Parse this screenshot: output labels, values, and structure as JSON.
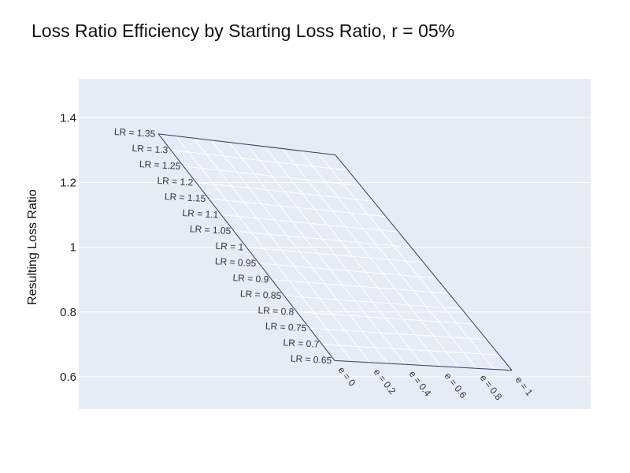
{
  "chart_data": {
    "type": "carpet",
    "title": "Loss Ratio Efficiency by Starting Loss Ratio, r = 05%",
    "ylabel": "Resulting Loss Ratio",
    "ylim": [
      0.5,
      1.52
    ],
    "yticks": [
      0.6,
      0.8,
      1,
      1.2,
      1.4
    ],
    "ytick_labels": [
      "0.6",
      "0.8",
      "1",
      "1.2",
      "1.4"
    ],
    "a_axis": {
      "name": "e",
      "values": [
        0,
        0.1,
        0.2,
        0.3,
        0.4,
        0.5,
        0.6,
        0.7,
        0.8,
        0.9,
        1
      ],
      "labels": [
        "e = 0",
        "e = 0.2",
        "e = 0.4",
        "e = 0.6",
        "e = 0.8",
        "e = 1"
      ],
      "label_values": [
        0,
        0.2,
        0.4,
        0.6,
        0.8,
        1
      ]
    },
    "b_axis": {
      "name": "LR",
      "values": [
        0.65,
        0.7,
        0.75,
        0.8,
        0.85,
        0.9,
        0.95,
        1,
        1.05,
        1.1,
        1.15,
        1.2,
        1.25,
        1.3,
        1.35
      ],
      "labels": [
        "LR = 0.65",
        "LR = 0.7",
        "LR = 0.75",
        "LR = 0.8",
        "LR = 0.85",
        "LR = 0.9",
        "LR = 0.95",
        "LR = 1",
        "LR = 1.05",
        "LR = 1.1",
        "LR = 1.15",
        "LR = 1.2",
        "LR = 1.25",
        "LR = 1.3",
        "LR = 1.35"
      ]
    },
    "corner_values": {
      "e0_lr0.65": 0.65,
      "e0_lr1.35": 1.35,
      "e1_lr0.65": 0.62,
      "e1_lr1.35": 1.285
    },
    "grid": true,
    "plot_bg": "#e5ecf6",
    "grid_color": "#ffffff",
    "edge_color": "#2a3f5f"
  }
}
